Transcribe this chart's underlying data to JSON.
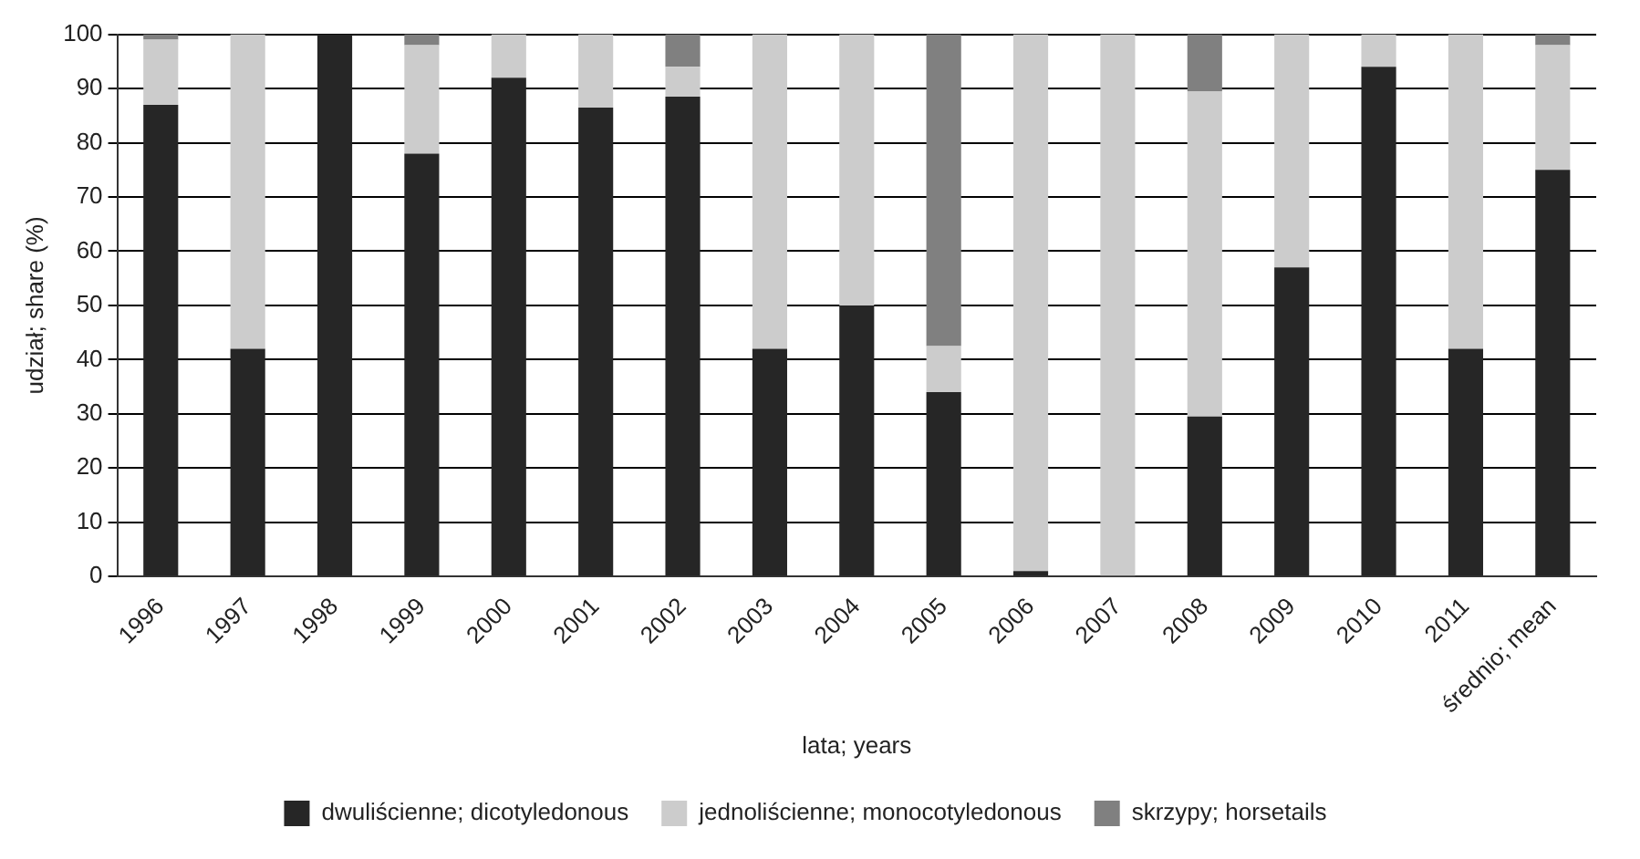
{
  "chart_data": {
    "type": "bar",
    "stacked": true,
    "xlabel": "lata; years",
    "ylabel": "udział; share (%)",
    "categories": [
      "1996",
      "1997",
      "1998",
      "1999",
      "2000",
      "2001",
      "2002",
      "2003",
      "2004",
      "2005",
      "2006",
      "2007",
      "2008",
      "2009",
      "2010",
      "2011",
      "średnio; mean"
    ],
    "series": [
      {
        "name": "dwuliścienne; dicotyledonous",
        "color": "#262626",
        "values": [
          87,
          42,
          100,
          78,
          92,
          86.5,
          88.5,
          42,
          50,
          34,
          1,
          0,
          29.5,
          57,
          94,
          42,
          75
        ]
      },
      {
        "name": "jednoliścienne; monocotyledonous",
        "color": "#cccccc",
        "values": [
          12,
          58,
          0,
          20,
          8,
          13.5,
          5.5,
          58,
          50,
          8.5,
          99,
          100,
          60,
          43,
          6,
          58,
          23
        ]
      },
      {
        "name": "skrzypy; horsetails",
        "color": "#808080",
        "values": [
          1,
          0,
          0,
          2,
          0,
          0,
          6,
          0,
          0,
          57.5,
          0,
          0,
          10.5,
          0,
          0,
          0,
          2
        ]
      }
    ],
    "ylim": [
      0,
      100
    ],
    "yticks": [
      0,
      10,
      20,
      30,
      40,
      50,
      60,
      70,
      80,
      90,
      100
    ],
    "grid": "y",
    "legend": "bottom"
  }
}
